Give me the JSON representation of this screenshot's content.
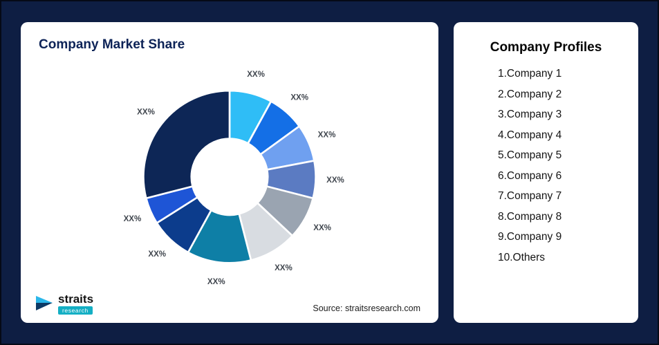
{
  "left_card": {
    "title": "Company Market Share",
    "source": "Source: straitsresearch.com",
    "logo_name": "straits",
    "logo_sub": "research"
  },
  "right_card": {
    "title": "Company Profiles",
    "items": [
      "1.Company 1",
      "2.Company 2",
      "3.Company 3",
      "4.Company 4",
      "5.Company 5",
      "6.Company 6",
      "7.Company 7",
      "8.Company 8",
      "9.Company 9",
      "10.Others"
    ]
  },
  "chart_data": {
    "type": "pie",
    "subtype": "donut",
    "title": "Company Market Share",
    "direction": "clockwise",
    "start_angle_deg": 0,
    "inner_radius_ratio": 0.44,
    "legend": "none",
    "value_label_text": "XX%",
    "series": [
      {
        "name": "Company 1",
        "value": 8,
        "label": "XX%",
        "color": "#2FBDF6"
      },
      {
        "name": "Company 2",
        "value": 7,
        "label": "XX%",
        "color": "#146FE6"
      },
      {
        "name": "Company 3",
        "value": 7,
        "label": "XX%",
        "color": "#6FA0F0"
      },
      {
        "name": "Company 4",
        "value": 7,
        "label": "XX%",
        "color": "#5B7BC2"
      },
      {
        "name": "Company 5",
        "value": 8,
        "label": "XX%",
        "color": "#9AA4B1"
      },
      {
        "name": "Company 6",
        "value": 9,
        "label": "XX%",
        "color": "#D8DCE1"
      },
      {
        "name": "Company 7",
        "value": 12,
        "label": "XX%",
        "color": "#0E7FA6"
      },
      {
        "name": "Company 8",
        "value": 8,
        "label": "XX%",
        "color": "#0C3C8C"
      },
      {
        "name": "Company 9",
        "value": 5,
        "label": "XX%",
        "color": "#1E55D6"
      },
      {
        "name": "Others",
        "value": 29,
        "label": "XX%",
        "color": "#0D2656"
      }
    ]
  },
  "colors": {
    "background": "#0E1E43",
    "card": "#FFFFFF",
    "title": "#0D2357",
    "slice_label": "#40464E"
  }
}
